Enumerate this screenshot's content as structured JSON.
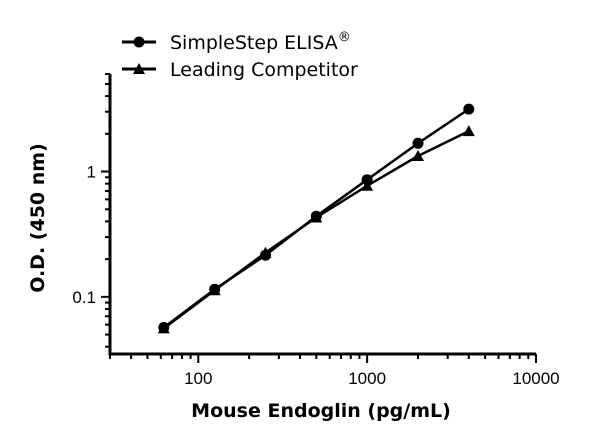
{
  "chart_data": {
    "type": "line",
    "xscale": "log",
    "yscale": "log",
    "xlabel": "Mouse Endoglin (pg/mL)",
    "ylabel": "O.D. (450 nm)",
    "xlim": [
      30,
      10000
    ],
    "ylim": [
      0.035,
      6
    ],
    "xticks": [
      100,
      1000,
      10000
    ],
    "xtick_labels": [
      "100",
      "1000",
      "10000"
    ],
    "yticks": [
      0.1,
      1
    ],
    "ytick_labels": [
      "0.1",
      "1"
    ],
    "legend_position": "top-left",
    "series": [
      {
        "name": "SimpleStep ELISA",
        "superscript": "®",
        "marker": "circle",
        "x": [
          62.5,
          125,
          250,
          500,
          1000,
          2000,
          4000
        ],
        "y": [
          0.057,
          0.115,
          0.215,
          0.44,
          0.86,
          1.68,
          3.15
        ]
      },
      {
        "name": "Leading Competitor",
        "superscript": "",
        "marker": "triangle",
        "x": [
          62.5,
          125,
          250,
          500,
          1000,
          2000,
          4000
        ],
        "y": [
          0.056,
          0.113,
          0.225,
          0.43,
          0.77,
          1.33,
          2.1
        ]
      }
    ]
  }
}
